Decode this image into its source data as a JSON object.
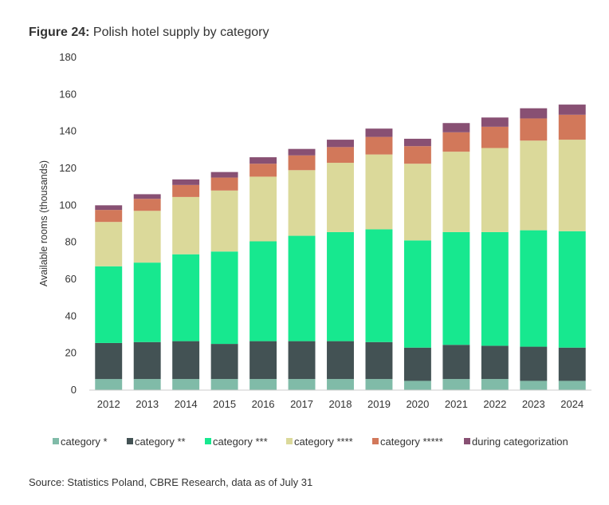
{
  "figure": {
    "label": "Figure 24:",
    "title": "Polish hotel supply by category",
    "source": "Source: Statistics Poland, CBRE Research, data as of July 31"
  },
  "chart_data": {
    "type": "bar",
    "stacked": true,
    "ylabel": "Available rooms (thousands)",
    "xlabel": "",
    "ylim": [
      0,
      180
    ],
    "yticks": [
      0,
      20,
      40,
      60,
      80,
      100,
      120,
      140,
      160,
      180
    ],
    "grid": false,
    "legend_position": "bottom",
    "categories": [
      "2012",
      "2013",
      "2014",
      "2015",
      "2016",
      "2017",
      "2018",
      "2019",
      "2020",
      "2021",
      "2022",
      "2023",
      "2024"
    ],
    "series": [
      {
        "name": "category *",
        "color": "#80bba8",
        "values": [
          6,
          6,
          6,
          6,
          6,
          6,
          6,
          6,
          5,
          6,
          6,
          5,
          5
        ]
      },
      {
        "name": "category **",
        "color": "#435254",
        "values": [
          19.5,
          20,
          20.5,
          19,
          20.5,
          20.5,
          20.5,
          20,
          18,
          18.5,
          18,
          18.5,
          18
        ]
      },
      {
        "name": "category ***",
        "color": "#17e88f",
        "values": [
          41.5,
          43,
          47,
          50,
          54,
          57,
          59,
          61,
          58,
          61,
          61.5,
          63,
          63
        ]
      },
      {
        "name": "category ****",
        "color": "#dbd99a",
        "values": [
          24,
          28,
          31,
          33,
          35,
          35.5,
          37.5,
          40.5,
          41.5,
          43.5,
          45.5,
          48.5,
          49.5
        ]
      },
      {
        "name": "category *****",
        "color": "#d2785a",
        "values": [
          6.5,
          6.5,
          6.5,
          7,
          7,
          8,
          8.5,
          9.5,
          9.5,
          10.5,
          11.5,
          12,
          13.5
        ]
      },
      {
        "name": "during categorization",
        "color": "#885073",
        "values": [
          2.5,
          2.5,
          3,
          3,
          3.5,
          3.5,
          4,
          4.5,
          4,
          5,
          5,
          5.5,
          5.5
        ]
      }
    ]
  }
}
